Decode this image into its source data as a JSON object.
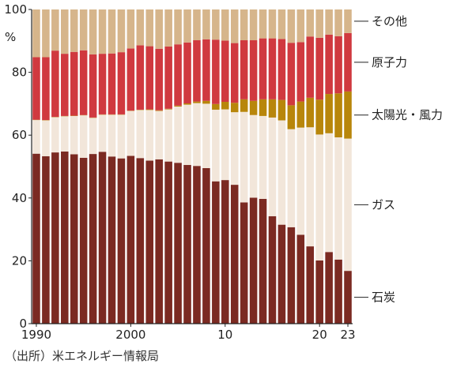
{
  "chart_data": {
    "type": "bar",
    "stacked": true,
    "normalized_percent": true,
    "x": [
      1990,
      1991,
      1992,
      1993,
      1994,
      1995,
      1996,
      1997,
      1998,
      1999,
      2000,
      2001,
      2002,
      2003,
      2004,
      2005,
      2006,
      2007,
      2008,
      2009,
      2010,
      2011,
      2012,
      2013,
      2014,
      2015,
      2016,
      2017,
      2018,
      2019,
      2020,
      2021,
      2022,
      2023
    ],
    "x_tick_labels": [
      {
        "x": 1990,
        "label": "1990"
      },
      {
        "x": 2000,
        "label": "2000"
      },
      {
        "x": 2010,
        "label": "10"
      },
      {
        "x": 2020,
        "label": "20"
      },
      {
        "x": 2023,
        "label": "23"
      }
    ],
    "y_unit_label": "%",
    "ylim": [
      0,
      100
    ],
    "y_ticks": [
      0,
      20,
      40,
      60,
      80,
      100
    ],
    "series": [
      {
        "name": "石炭",
        "color": "#7b2a22",
        "values": [
          54.1,
          53.3,
          54.5,
          54.8,
          53.9,
          52.8,
          54.0,
          54.7,
          53.2,
          52.6,
          53.4,
          52.7,
          51.9,
          52.3,
          51.6,
          51.2,
          50.5,
          50.2,
          49.5,
          45.3,
          45.7,
          44.2,
          38.6,
          40.1,
          39.7,
          34.2,
          31.5,
          30.7,
          28.3,
          24.6,
          20.1,
          22.8,
          20.4,
          16.8
        ]
      },
      {
        "name": "ガス",
        "color": "#f2e6da",
        "values": [
          10.7,
          11.4,
          11.2,
          11.2,
          12.2,
          13.5,
          11.5,
          11.8,
          13.3,
          13.9,
          14.3,
          15.3,
          16.1,
          15.4,
          16.6,
          17.9,
          19.2,
          20.0,
          20.5,
          22.8,
          22.5,
          23.1,
          28.8,
          26.3,
          26.4,
          31.4,
          33.2,
          31.2,
          34.1,
          37.9,
          40.1,
          37.8,
          38.9,
          42.1
        ]
      },
      {
        "name": "太陽光・風力",
        "color": "#b8860b",
        "values": [
          0.1,
          0.1,
          0.1,
          0.1,
          0.1,
          0.1,
          0.1,
          0.1,
          0.1,
          0.1,
          0.1,
          0.1,
          0.2,
          0.2,
          0.2,
          0.3,
          0.4,
          0.5,
          0.9,
          1.8,
          2.4,
          3.0,
          4.0,
          4.5,
          5.3,
          5.8,
          6.5,
          7.6,
          8.3,
          9.4,
          11.1,
          12.5,
          14.0,
          15.0
        ]
      },
      {
        "name": "原子力",
        "color": "#d0393f",
        "values": [
          19.9,
          20.0,
          21.1,
          19.8,
          20.3,
          20.6,
          20.1,
          19.3,
          19.4,
          19.8,
          19.8,
          20.5,
          20.1,
          19.6,
          19.8,
          19.5,
          19.4,
          19.5,
          19.6,
          20.5,
          19.5,
          19.0,
          18.8,
          19.3,
          19.4,
          19.4,
          19.4,
          19.9,
          18.9,
          19.5,
          19.7,
          18.9,
          18.2,
          18.6
        ]
      },
      {
        "name": "その他",
        "color": "#d6b58b",
        "values": [
          15.2,
          15.2,
          13.1,
          14.1,
          13.5,
          13.0,
          14.3,
          14.1,
          14.0,
          13.6,
          12.4,
          11.4,
          11.7,
          12.5,
          11.8,
          11.1,
          10.5,
          9.8,
          9.5,
          9.6,
          9.9,
          10.7,
          9.8,
          9.8,
          9.2,
          9.2,
          9.4,
          10.6,
          10.4,
          8.6,
          9.0,
          8.0,
          8.5,
          7.5
        ]
      }
    ],
    "legend_placement": "right, aligned with each band"
  },
  "source_note": "（出所）米エネルギー情報局"
}
